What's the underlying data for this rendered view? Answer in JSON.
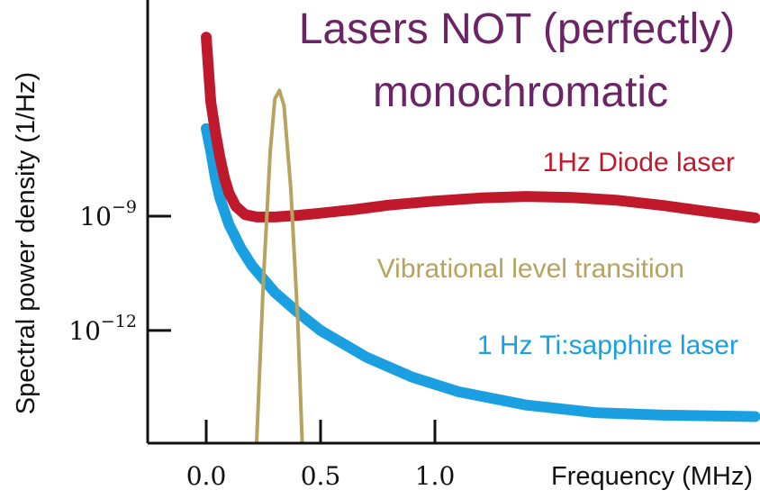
{
  "chart_data": {
    "type": "line",
    "title_lines": [
      "Lasers NOT (perfectly)",
      "monochromatic"
    ],
    "xlabel": "Frequency (MHz)",
    "ylabel": "Spectral power density  (1/Hz)",
    "y_scale": "log",
    "x_ticks": [
      0.0,
      0.5,
      1.0
    ],
    "x_tick_labels": [
      "0.0",
      "0.5",
      "1.0"
    ],
    "y_ticks": [
      {
        "value": 1e-09,
        "base": "10",
        "exp": "−9"
      },
      {
        "value": 1e-12,
        "base": "10",
        "exp": "−12"
      }
    ],
    "xlim": [
      -0.25,
      2.4
    ],
    "ylim": [
      1e-15,
      0.0001
    ],
    "grid": false,
    "series": [
      {
        "name": "1Hz Diode laser",
        "color": "#c0192b",
        "points": [
          [
            0.0,
            5e-05
          ],
          [
            0.02,
            1e-06
          ],
          [
            0.04,
            1.6e-07
          ],
          [
            0.06,
            3.5e-08
          ],
          [
            0.08,
            1e-08
          ],
          [
            0.1,
            4e-09
          ],
          [
            0.13,
            1.8e-09
          ],
          [
            0.17,
            1.1e-09
          ],
          [
            0.22,
            9.5e-10
          ],
          [
            0.3,
            9.5e-10
          ],
          [
            0.4,
            1.05e-09
          ],
          [
            0.5,
            1.2e-09
          ],
          [
            0.65,
            1.5e-09
          ],
          [
            0.8,
            1.95e-09
          ],
          [
            1.0,
            2.5e-09
          ],
          [
            1.2,
            3e-09
          ],
          [
            1.4,
            3.3e-09
          ],
          [
            1.6,
            3.1e-09
          ],
          [
            1.8,
            2.6e-09
          ],
          [
            2.0,
            1.9e-09
          ],
          [
            2.2,
            1.3e-09
          ],
          [
            2.4,
            9e-10
          ]
        ]
      },
      {
        "name": "1 Hz Ti:sapphire laser",
        "color": "#1aa0e0",
        "points": [
          [
            0.0,
            2e-07
          ],
          [
            0.02,
            5e-08
          ],
          [
            0.04,
            1e-08
          ],
          [
            0.06,
            3e-09
          ],
          [
            0.1,
            6e-10
          ],
          [
            0.15,
            1.5e-10
          ],
          [
            0.2,
            5e-11
          ],
          [
            0.3,
            1e-11
          ],
          [
            0.4,
            3e-12
          ],
          [
            0.5,
            1e-12
          ],
          [
            0.7,
            2e-13
          ],
          [
            0.9,
            6e-14
          ],
          [
            1.1,
            2.5e-14
          ],
          [
            1.4,
            1.1e-14
          ],
          [
            1.7,
            7e-15
          ],
          [
            2.0,
            6e-15
          ],
          [
            2.4,
            5.5e-15
          ]
        ]
      },
      {
        "name": "Vibrational level transition",
        "color": "#b5a35f",
        "points": [
          [
            0.22,
            1e-15
          ],
          [
            0.25,
            2e-11
          ],
          [
            0.28,
            5e-08
          ],
          [
            0.3,
            1.2e-06
          ],
          [
            0.32,
            2e-06
          ],
          [
            0.34,
            8e-07
          ],
          [
            0.37,
            5e-09
          ],
          [
            0.4,
            2e-12
          ],
          [
            0.42,
            1e-15
          ]
        ]
      }
    ]
  }
}
